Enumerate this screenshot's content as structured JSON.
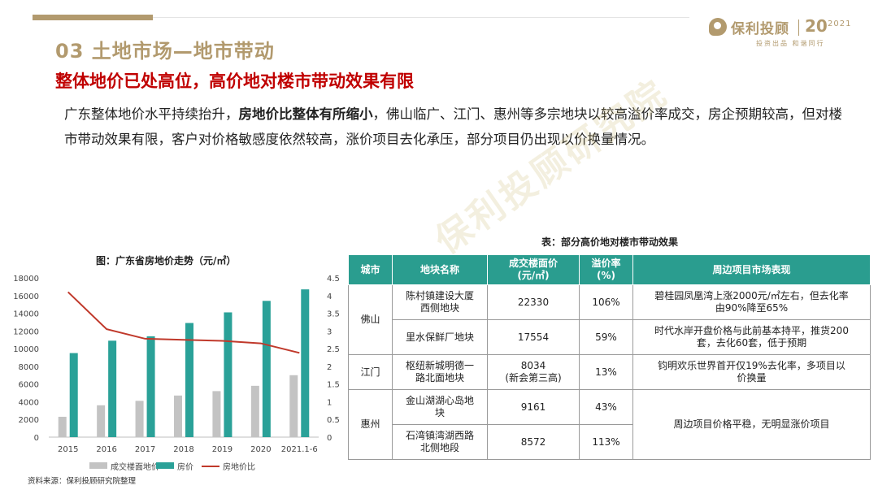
{
  "header": {
    "logo": {
      "name": "保利投顾",
      "year_big": "20",
      "year_small": "2021",
      "slogan": "投资出品 和谐同行"
    },
    "section_title": "03 土地市场—地市带动",
    "subtitle": "整体地价已处高位，高价地对楼市带动效果有限"
  },
  "intro": {
    "part1": "广东整体地价水平持续抬升，",
    "bold": "房地价比整体有所缩小",
    "part2": "，佛山临广、江门、惠州等多宗地块以较高溢价率成交，房企预期较高，但对楼市带动效果有限，客户对价格敏感度依然较高，涨价项目去化承压，部分项目仍出现以价换量情况。"
  },
  "watermark": "保利投顾研究院",
  "chart_data": {
    "type": "bar",
    "title": "图：广东省房地价走势（元/㎡）",
    "categories": [
      "2015",
      "2016",
      "2017",
      "2018",
      "2019",
      "2020",
      "2021.1-6"
    ],
    "series": [
      {
        "name": "成交楼面地价",
        "type": "bar",
        "axis": "left",
        "color": "#c3c3c3",
        "values": [
          2300,
          3600,
          4100,
          4700,
          5200,
          5800,
          7000
        ]
      },
      {
        "name": "房价",
        "type": "bar",
        "axis": "left",
        "color": "#2aa198",
        "values": [
          9500,
          10900,
          11400,
          12900,
          14100,
          15400,
          16700
        ]
      },
      {
        "name": "房地价比",
        "type": "line",
        "axis": "right",
        "color": "#c0392b",
        "values": [
          4.1,
          3.05,
          2.78,
          2.75,
          2.72,
          2.65,
          2.38
        ]
      }
    ],
    "left_axis": {
      "min": 0,
      "max": 18000,
      "step": 2000,
      "ticks": [
        "0",
        "2000",
        "4000",
        "6000",
        "8000",
        "10000",
        "12000",
        "14000",
        "16000",
        "18000"
      ]
    },
    "right_axis": {
      "min": 0,
      "max": 4.5,
      "step": 0.5,
      "ticks": [
        "0",
        "0.5",
        "1",
        "1.5",
        "2",
        "2.5",
        "3",
        "3.5",
        "4",
        "4.5"
      ]
    },
    "legend_position": "bottom",
    "grid": false,
    "source": "资料来源：保利投顾研究院整理"
  },
  "table": {
    "caption": "表：部分高价地对楼市带动效果",
    "headers": [
      "城市",
      "地块名称",
      "成交楼面价\n(元/㎡)",
      "溢价率\n(%)",
      "周边项目市场表现"
    ],
    "rows": [
      {
        "city": "佛山",
        "land": "陈村镇建设大厦\n西侧地块",
        "price": "22330",
        "premium": "106%",
        "market": "碧桂园凤凰湾上涨2000元/㎡左右，但去化率\n由90%降至65%"
      },
      {
        "land": "里水保鲜厂地块",
        "price": "17554",
        "premium": "59%",
        "market": "时代水岸开盘价格与此前基本持平，推货200\n套，去化60套，低于预期"
      },
      {
        "city": "江门",
        "land": "枢纽新城明德一\n路北面地块",
        "price": "8034\n(新会第三高)",
        "premium": "13%",
        "market": "钧明欢乐世界首开仅19%去化率，多项目以\n价换量"
      },
      {
        "city": "惠州",
        "land": "金山湖湖心岛地\n块",
        "price": "9161",
        "premium": "43%",
        "market": "周边项目价格平稳，无明显涨价项目"
      },
      {
        "land": "石湾镇湾湖西路\n北侧地段",
        "price": "8572",
        "premium": "113%"
      }
    ]
  }
}
